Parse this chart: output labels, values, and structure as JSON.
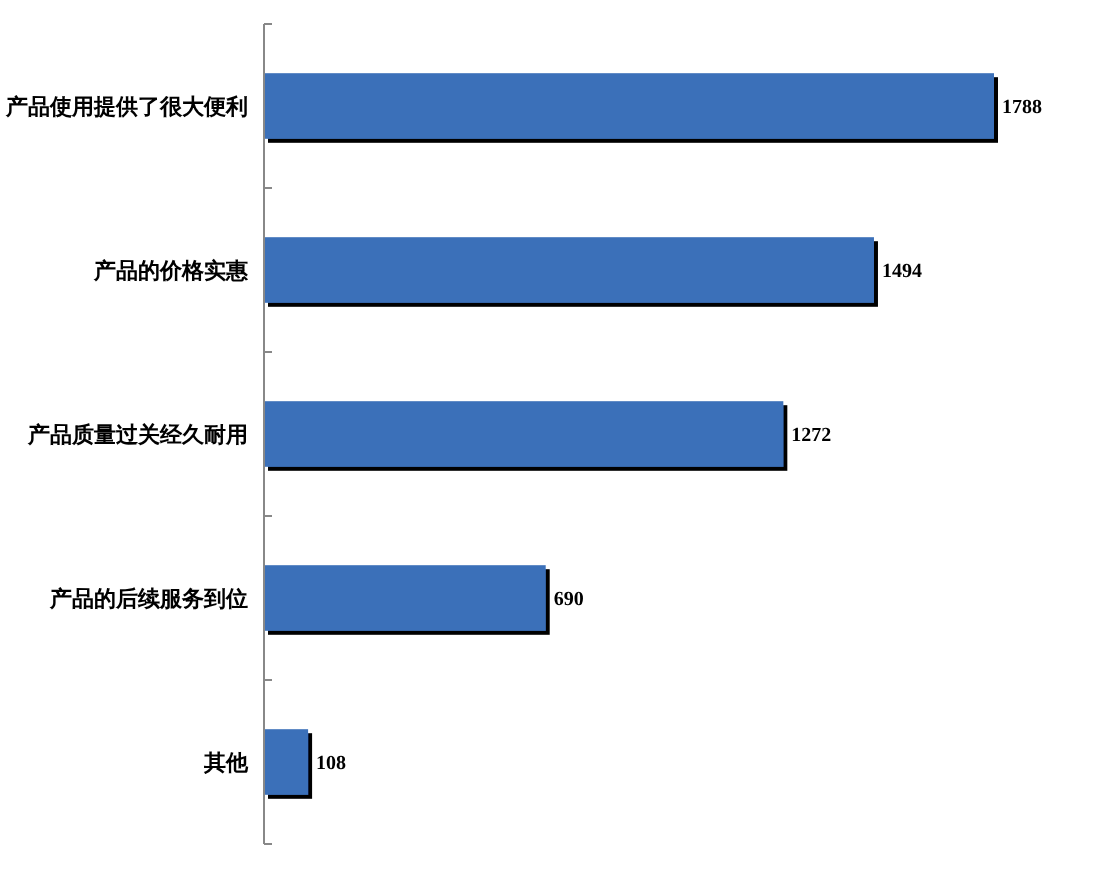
{
  "chart_data": {
    "type": "bar",
    "orientation": "horizontal",
    "categories": [
      "产品使用提供了很大便利",
      "产品的价格实惠",
      "产品质量过关经久耐用",
      "产品的后续服务到位",
      "其他"
    ],
    "values": [
      1788,
      1494,
      1272,
      690,
      108
    ],
    "color": "#3b70b9",
    "data_labels": true
  }
}
